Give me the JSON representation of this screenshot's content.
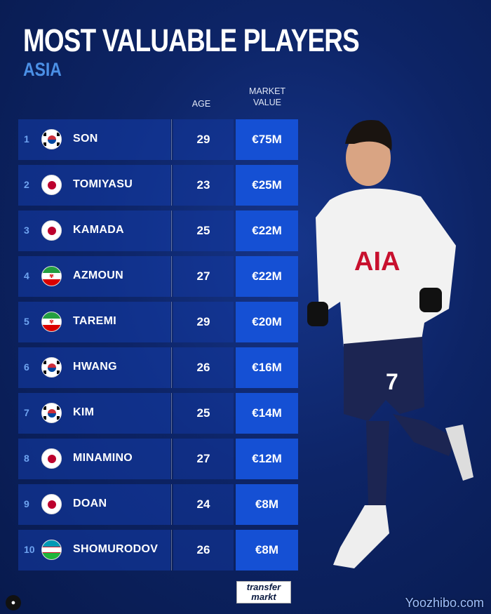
{
  "title": "MOST VALUABLE PLAYERS",
  "subtitle": "ASIA",
  "headers": {
    "age": "AGE",
    "value_line1": "MARKET",
    "value_line2": "VALUE"
  },
  "players": [
    {
      "rank": "1",
      "flag": "south-korea",
      "name": "SON",
      "age": "29",
      "value": "€75M"
    },
    {
      "rank": "2",
      "flag": "japan",
      "name": "TOMIYASU",
      "age": "23",
      "value": "€25M"
    },
    {
      "rank": "3",
      "flag": "japan",
      "name": "KAMADA",
      "age": "25",
      "value": "€22M"
    },
    {
      "rank": "4",
      "flag": "iran",
      "name": "AZMOUN",
      "age": "27",
      "value": "€22M"
    },
    {
      "rank": "5",
      "flag": "iran",
      "name": "TAREMI",
      "age": "29",
      "value": "€20M"
    },
    {
      "rank": "6",
      "flag": "south-korea",
      "name": "HWANG",
      "age": "26",
      "value": "€16M"
    },
    {
      "rank": "7",
      "flag": "south-korea",
      "name": "KIM",
      "age": "25",
      "value": "€14M"
    },
    {
      "rank": "8",
      "flag": "japan",
      "name": "MINAMINO",
      "age": "27",
      "value": "€12M"
    },
    {
      "rank": "9",
      "flag": "japan",
      "name": "DOAN",
      "age": "24",
      "value": "€8M"
    },
    {
      "rank": "10",
      "flag": "uzbekistan",
      "name": "SHOMURODOV",
      "age": "26",
      "value": "€8M"
    }
  ],
  "jersey": {
    "sponsor": "AIA",
    "number": "7"
  },
  "logo": {
    "line1": "transfer",
    "line2": "markt"
  },
  "watermark": "Yoozhibo.com",
  "colors": {
    "accent": "#4b90e6",
    "value_cell": "#1550d4",
    "background": "#0d2466"
  }
}
